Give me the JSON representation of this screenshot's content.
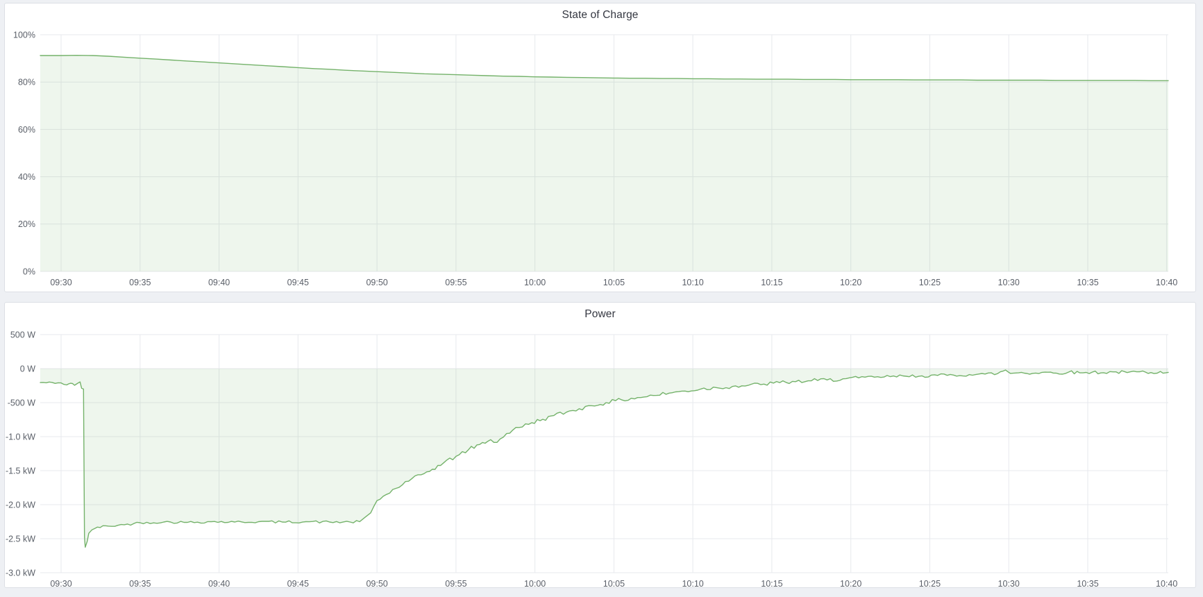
{
  "theme": {
    "page_bg": "#eef0f4",
    "panel_bg": "#ffffff",
    "panel_border": "#dcdfe5",
    "grid_color": "#e7e9ed",
    "tick_text_color": "#5a5f68",
    "title_text_color": "#343741",
    "series_green": "#74b26a"
  },
  "chart_data": [
    {
      "type": "area",
      "title": "State of Charge",
      "ylabel": "",
      "xlabel": "",
      "unit": "percent",
      "y_range": [
        0,
        100
      ],
      "x_domain": [
        -1.32,
        70.1
      ],
      "x_tick_minutes": [
        0,
        5,
        10,
        15,
        20,
        25,
        30,
        35,
        40,
        45,
        50,
        55,
        60,
        65,
        70
      ],
      "x_tick_labels": [
        "09:30",
        "09:35",
        "09:40",
        "09:45",
        "09:50",
        "09:55",
        "10:00",
        "10:05",
        "10:10",
        "10:15",
        "10:20",
        "10:25",
        "10:30",
        "10:35",
        "10:40"
      ],
      "y_ticks": [
        {
          "v": 100,
          "label": "100%"
        },
        {
          "v": 80,
          "label": "80%"
        },
        {
          "v": 60,
          "label": "60%"
        },
        {
          "v": 40,
          "label": "40%"
        },
        {
          "v": 20,
          "label": "20%"
        },
        {
          "v": 0,
          "label": "0%"
        }
      ],
      "x_start_minute": 0,
      "x_step_minute": 1,
      "values": [
        91.2,
        91.3,
        91.2,
        90.9,
        90.5,
        90.1,
        89.7,
        89.3,
        88.9,
        88.5,
        88.1,
        87.7,
        87.3,
        86.9,
        86.5,
        86.1,
        85.7,
        85.4,
        85.0,
        84.7,
        84.4,
        84.1,
        83.8,
        83.5,
        83.3,
        83.1,
        82.9,
        82.7,
        82.5,
        82.4,
        82.2,
        82.1,
        82.0,
        81.9,
        81.8,
        81.7,
        81.6,
        81.6,
        81.5,
        81.5,
        81.4,
        81.4,
        81.3,
        81.3,
        81.2,
        81.2,
        81.2,
        81.1,
        81.1,
        81.1,
        81.0,
        81.0,
        81.0,
        81.0,
        80.9,
        80.9,
        80.9,
        80.9,
        80.8,
        80.8,
        80.8,
        80.8,
        80.8,
        80.7,
        80.7,
        80.7,
        80.7,
        80.7,
        80.7,
        80.6,
        80.6
      ],
      "baseline": 0,
      "line_color": "#74b26a",
      "fill_opacity": 0.12,
      "grid": true,
      "legend": "none"
    },
    {
      "type": "area",
      "title": "Power",
      "ylabel": "",
      "xlabel": "",
      "unit": "watt",
      "y_range": [
        -3000,
        500
      ],
      "x_domain": [
        -1.32,
        70.1
      ],
      "x_tick_minutes": [
        0,
        5,
        10,
        15,
        20,
        25,
        30,
        35,
        40,
        45,
        50,
        55,
        60,
        65,
        70
      ],
      "x_tick_labels": [
        "09:30",
        "09:35",
        "09:40",
        "09:45",
        "09:50",
        "09:55",
        "10:00",
        "10:05",
        "10:10",
        "10:15",
        "10:20",
        "10:25",
        "10:30",
        "10:35",
        "10:40"
      ],
      "y_ticks": [
        {
          "v": 500,
          "label": "500 W"
        },
        {
          "v": 0,
          "label": "0 W"
        },
        {
          "v": -500,
          "label": "-500 W"
        },
        {
          "v": -1000,
          "label": "-1.0 kW"
        },
        {
          "v": -1500,
          "label": "-1.5 kW"
        },
        {
          "v": -2000,
          "label": "-2.0 kW"
        },
        {
          "v": -2500,
          "label": "-2.5 kW"
        },
        {
          "v": -3000,
          "label": "-3.0 kW"
        }
      ],
      "keypoints": [
        [
          -1.32,
          -205
        ],
        [
          0,
          -210
        ],
        [
          0.35,
          -240
        ],
        [
          0.6,
          -215
        ],
        [
          0.85,
          -245
        ],
        [
          1.05,
          -215
        ],
        [
          1.2,
          -195
        ],
        [
          1.3,
          -290
        ],
        [
          1.42,
          -300
        ],
        [
          1.48,
          -2480
        ],
        [
          1.53,
          -2625
        ],
        [
          1.65,
          -2540
        ],
        [
          1.75,
          -2420
        ],
        [
          1.95,
          -2370
        ],
        [
          2.3,
          -2330
        ],
        [
          3,
          -2315
        ],
        [
          4,
          -2295
        ],
        [
          5,
          -2265
        ],
        [
          6.5,
          -2255
        ],
        [
          8,
          -2260
        ],
        [
          9.5,
          -2250
        ],
        [
          11,
          -2255
        ],
        [
          12.5,
          -2250
        ],
        [
          14,
          -2255
        ],
        [
          15.5,
          -2250
        ],
        [
          17,
          -2255
        ],
        [
          18.3,
          -2255
        ],
        [
          18.9,
          -2250
        ],
        [
          19.6,
          -2120
        ],
        [
          20,
          -1940
        ],
        [
          20.6,
          -1850
        ],
        [
          21.2,
          -1760
        ],
        [
          22,
          -1655
        ],
        [
          22.8,
          -1560
        ],
        [
          23.5,
          -1480
        ],
        [
          24.2,
          -1390
        ],
        [
          25,
          -1290
        ],
        [
          25.8,
          -1190
        ],
        [
          26.5,
          -1115
        ],
        [
          27.2,
          -1045
        ],
        [
          27.6,
          -1085
        ],
        [
          28.2,
          -955
        ],
        [
          29,
          -865
        ],
        [
          29.8,
          -795
        ],
        [
          30.5,
          -745
        ],
        [
          31.2,
          -690
        ],
        [
          32,
          -640
        ],
        [
          32.8,
          -590
        ],
        [
          33.6,
          -545
        ],
        [
          34.5,
          -500
        ],
        [
          35.5,
          -460
        ],
        [
          36.5,
          -425
        ],
        [
          37.5,
          -395
        ],
        [
          38.5,
          -360
        ],
        [
          39.5,
          -330
        ],
        [
          40.5,
          -300
        ],
        [
          41.5,
          -280
        ],
        [
          42.5,
          -262
        ],
        [
          43.5,
          -246
        ],
        [
          44.5,
          -228
        ],
        [
          45.5,
          -206
        ],
        [
          46.5,
          -192
        ],
        [
          47.5,
          -180
        ],
        [
          48.5,
          -166
        ],
        [
          49.5,
          -150
        ],
        [
          50.5,
          -136
        ],
        [
          51.5,
          -126
        ],
        [
          52.5,
          -118
        ],
        [
          53.5,
          -112
        ],
        [
          54.5,
          -106
        ],
        [
          55.5,
          -100
        ],
        [
          56.5,
          -95
        ],
        [
          57.5,
          -88
        ],
        [
          58.5,
          -80
        ],
        [
          59.3,
          -72
        ],
        [
          59.8,
          -20
        ],
        [
          60.1,
          -70
        ],
        [
          60.8,
          -55
        ],
        [
          61.5,
          -70
        ],
        [
          62.3,
          -52
        ],
        [
          63,
          -66
        ],
        [
          63.8,
          -50
        ],
        [
          64.5,
          -62
        ],
        [
          65.3,
          -50
        ],
        [
          66,
          -60
        ],
        [
          66.8,
          -48
        ],
        [
          67.5,
          -58
        ],
        [
          68.3,
          -46
        ],
        [
          69,
          -58
        ],
        [
          69.6,
          -42
        ],
        [
          70.1,
          -55
        ]
      ],
      "noise": [
        {
          "from": -1.32,
          "to": 1.3,
          "amp": 14
        },
        {
          "from": 2.0,
          "to": 18.9,
          "amp": 18
        },
        {
          "from": 19.6,
          "to": 49.5,
          "amp": 30
        },
        {
          "from": 49.5,
          "to": 70.1,
          "amp": 24
        }
      ],
      "noise_seed": 42,
      "baseline": 0,
      "line_color": "#74b26a",
      "fill_opacity": 0.12,
      "grid": true,
      "legend": "none"
    }
  ]
}
